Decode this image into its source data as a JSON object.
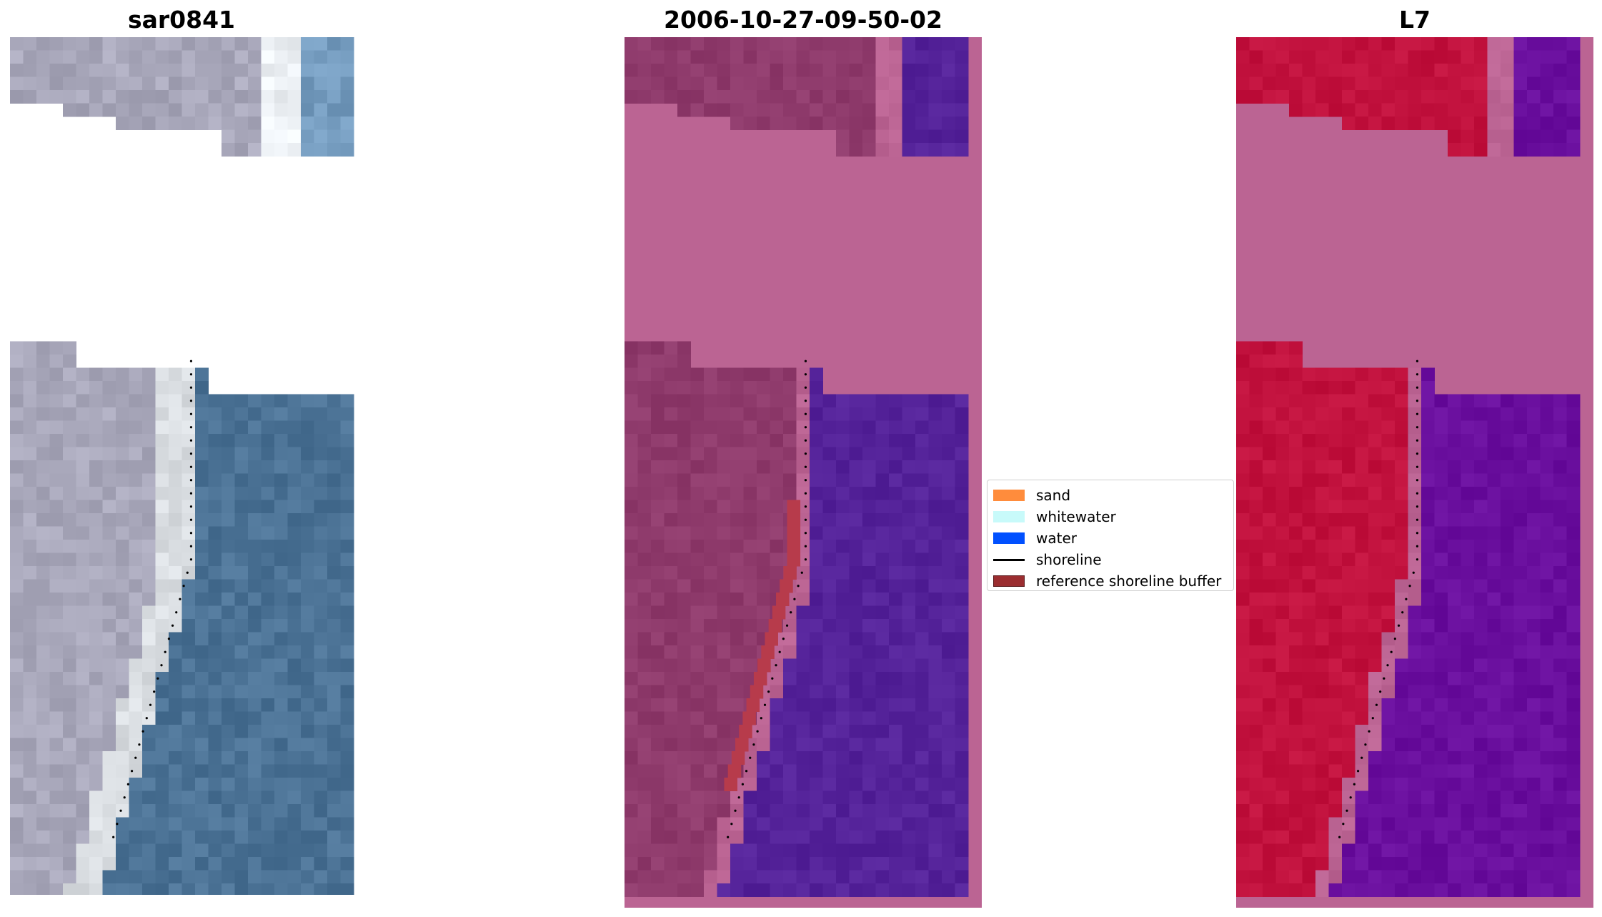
{
  "panels": [
    {
      "title": "sar0841",
      "kind": "rgb"
    },
    {
      "title": "2006-10-27-09-50-02",
      "kind": "classified"
    },
    {
      "title": "L7",
      "kind": "mndwi"
    }
  ],
  "legend": {
    "items": [
      {
        "label": "sand",
        "color": "#ff8c3c",
        "type": "patch"
      },
      {
        "label": "whitewater",
        "color": "#c8fafa",
        "type": "patch"
      },
      {
        "label": "water",
        "color": "#0050ff",
        "type": "patch"
      },
      {
        "label": "shoreline",
        "color": "#000000",
        "type": "line"
      },
      {
        "label": "reference shoreline buffer",
        "color": "#9b2d30",
        "type": "patch"
      }
    ]
  },
  "colors": {
    "rgb_land": "#a9a8bb",
    "rgb_water": "#4c7396",
    "rgb_white": "#eef2f6",
    "class_land": "#8f3b6c",
    "class_nodata": "#bb6493",
    "class_water": "#55239a",
    "class_buffer": "#b73b4b",
    "l7_land": "#c2123e",
    "l7_water": "#6a0f9e",
    "l7_nodata": "#bb6493"
  }
}
